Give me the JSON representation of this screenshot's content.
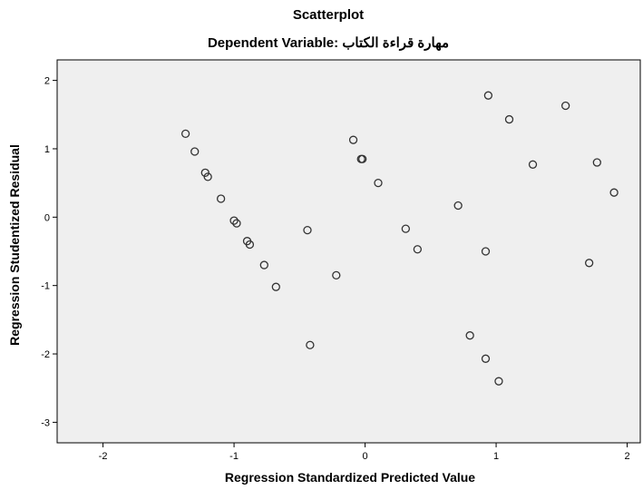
{
  "chart_data": {
    "type": "scatter",
    "title": "Scatterplot",
    "subtitle": "Dependent Variable: مهارة قراءة الكتاب",
    "xlabel": "Regression Standardized Predicted Value",
    "ylabel": "Regression Studentized Residual",
    "xlim": [
      -2.35,
      2.1
    ],
    "ylim": [
      -3.3,
      2.3
    ],
    "xticks": [
      -2,
      -1,
      0,
      1,
      2
    ],
    "yticks": [
      -3,
      -2,
      -1,
      0,
      1,
      2
    ],
    "grid": false,
    "colors": {
      "plot_background": "#efefef",
      "point_stroke": "#333333",
      "axis": "#000000"
    },
    "points": [
      {
        "x": -1.37,
        "y": 1.22
      },
      {
        "x": -1.3,
        "y": 0.96
      },
      {
        "x": -1.22,
        "y": 0.65
      },
      {
        "x": -1.2,
        "y": 0.59
      },
      {
        "x": -1.1,
        "y": 0.27
      },
      {
        "x": -1.0,
        "y": -0.05
      },
      {
        "x": -0.98,
        "y": -0.09
      },
      {
        "x": -0.9,
        "y": -0.35
      },
      {
        "x": -0.88,
        "y": -0.4
      },
      {
        "x": -0.77,
        "y": -0.7
      },
      {
        "x": -0.68,
        "y": -1.02
      },
      {
        "x": -0.44,
        "y": -0.19
      },
      {
        "x": -0.42,
        "y": -1.87
      },
      {
        "x": -0.22,
        "y": -0.85
      },
      {
        "x": -0.09,
        "y": 1.13
      },
      {
        "x": -0.03,
        "y": 0.85
      },
      {
        "x": -0.02,
        "y": 0.85
      },
      {
        "x": 0.1,
        "y": 0.5
      },
      {
        "x": 0.31,
        "y": -0.17
      },
      {
        "x": 0.4,
        "y": -0.47
      },
      {
        "x": 0.71,
        "y": 0.17
      },
      {
        "x": 0.8,
        "y": -1.73
      },
      {
        "x": 0.92,
        "y": -0.5
      },
      {
        "x": 0.92,
        "y": -2.07
      },
      {
        "x": 0.94,
        "y": 1.78
      },
      {
        "x": 1.02,
        "y": -2.4
      },
      {
        "x": 1.1,
        "y": 1.43
      },
      {
        "x": 1.28,
        "y": 0.77
      },
      {
        "x": 1.53,
        "y": 1.63
      },
      {
        "x": 1.71,
        "y": -0.67
      },
      {
        "x": 1.77,
        "y": 0.8
      },
      {
        "x": 1.9,
        "y": 0.36
      }
    ]
  }
}
